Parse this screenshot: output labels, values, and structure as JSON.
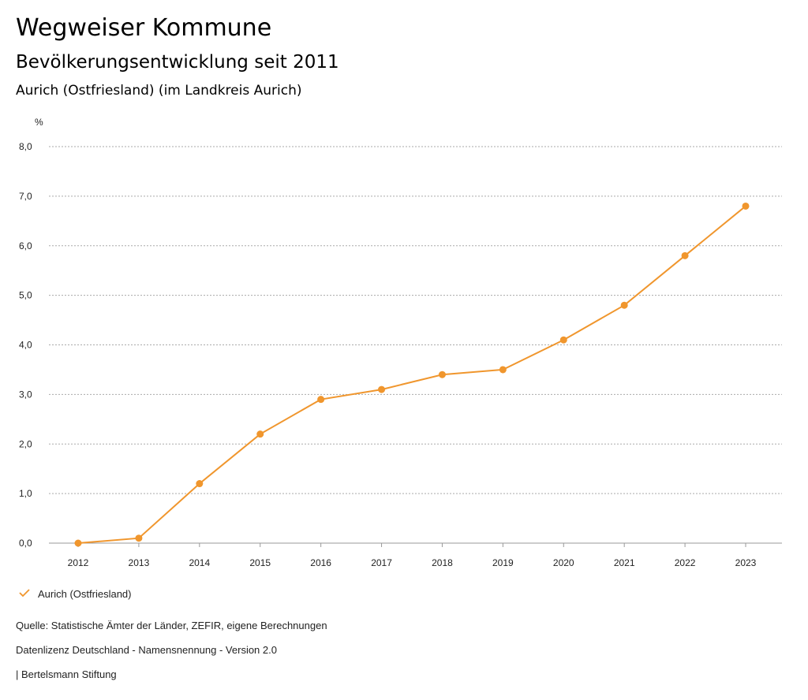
{
  "header": {
    "title": "Wegweiser Kommune",
    "subtitle": "Bevölkerungsentwicklung seit 2011",
    "region": "Aurich (Ostfriesland) (im Landkreis Aurich)"
  },
  "chart_data": {
    "type": "line",
    "ylabel": "%",
    "ylim": [
      0,
      8
    ],
    "yticks": [
      "0,0",
      "1,0",
      "2,0",
      "3,0",
      "4,0",
      "5,0",
      "6,0",
      "7,0",
      "8,0"
    ],
    "x": [
      "2012",
      "2013",
      "2014",
      "2015",
      "2016",
      "2017",
      "2018",
      "2019",
      "2020",
      "2021",
      "2022",
      "2023"
    ],
    "series": [
      {
        "name": "Aurich (Ostfriesland)",
        "color": "#f0962d",
        "values": [
          0.0,
          0.1,
          1.2,
          2.2,
          2.9,
          3.1,
          3.4,
          3.5,
          4.1,
          4.8,
          5.8,
          6.8
        ]
      }
    ],
    "grid": true,
    "legend": "bottom-left"
  },
  "footer": {
    "source": "Quelle: Statistische Ämter der Länder, ZEFIR, eigene Berechnungen",
    "license": "Datenlizenz Deutschland - Namensnennung - Version 2.0",
    "credit": "| Bertelsmann Stiftung"
  }
}
